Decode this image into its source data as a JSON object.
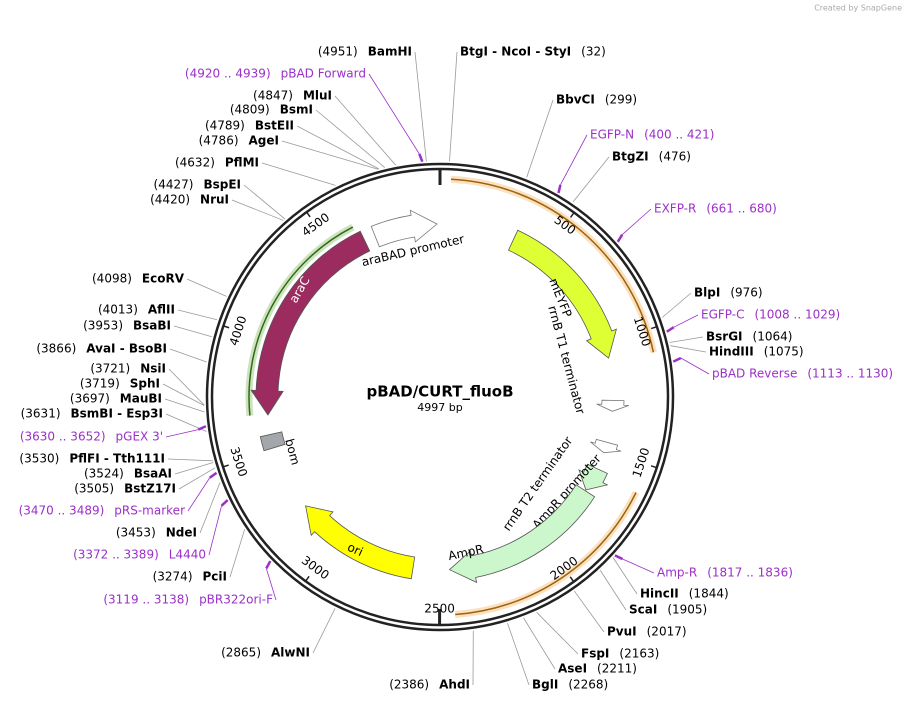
{
  "title": "pBAD/CURT_fluoB",
  "length": {
    "value": 4997,
    "label": "4997 bp"
  },
  "credit": "Created by SnapGene",
  "ticks": [
    500,
    1000,
    1500,
    2000,
    2500,
    3000,
    3500,
    4000,
    4500
  ],
  "sites": [
    {
      "name": "BamHI",
      "position": {
        "value": 4951,
        "label": "(4951)"
      }
    },
    {
      "name": "BtgI - NcoI - StyI",
      "position": {
        "value": 32,
        "label": "(32)"
      }
    },
    {
      "name": "BbvCI",
      "position": {
        "value": 299,
        "label": "(299)"
      }
    },
    {
      "name": "BtgZI",
      "position": {
        "value": 476,
        "label": "(476)"
      }
    },
    {
      "name": "BlpI",
      "position": {
        "value": 976,
        "label": "(976)"
      }
    },
    {
      "name": "BsrGI",
      "position": {
        "value": 1064,
        "label": "(1064)"
      }
    },
    {
      "name": "HindIII",
      "position": {
        "value": 1075,
        "label": "(1075)"
      }
    },
    {
      "name": "HincII",
      "position": {
        "value": 1844,
        "label": "(1844)"
      }
    },
    {
      "name": "ScaI",
      "position": {
        "value": 1905,
        "label": "(1905)"
      }
    },
    {
      "name": "PvuI",
      "position": {
        "value": 2017,
        "label": "(2017)"
      }
    },
    {
      "name": "FspI",
      "position": {
        "value": 2163,
        "label": "(2163)"
      }
    },
    {
      "name": "AseI",
      "position": {
        "value": 2211,
        "label": "(2211)"
      }
    },
    {
      "name": "BglI",
      "position": {
        "value": 2268,
        "label": "(2268)"
      }
    },
    {
      "name": "AhdI",
      "position": {
        "value": 2386,
        "label": "(2386)"
      }
    },
    {
      "name": "AlwNI",
      "position": {
        "value": 2865,
        "label": "(2865)"
      }
    },
    {
      "name": "PciI",
      "position": {
        "value": 3274,
        "label": "(3274)"
      }
    },
    {
      "name": "NdeI",
      "position": {
        "value": 3453,
        "label": "(3453)"
      }
    },
    {
      "name": "BstZ17I",
      "position": {
        "value": 3505,
        "label": "(3505)"
      }
    },
    {
      "name": "BsaAI",
      "position": {
        "value": 3524,
        "label": "(3524)"
      }
    },
    {
      "name": "PflFI - Tth111I",
      "position": {
        "value": 3530,
        "label": "(3530)"
      }
    },
    {
      "name": "BsmBI - Esp3I",
      "position": {
        "value": 3631,
        "label": "(3631)"
      }
    },
    {
      "name": "MauBI",
      "position": {
        "value": 3697,
        "label": "(3697)"
      }
    },
    {
      "name": "SphI",
      "position": {
        "value": 3719,
        "label": "(3719)"
      }
    },
    {
      "name": "NsiI",
      "position": {
        "value": 3721,
        "label": "(3721)"
      }
    },
    {
      "name": "AvaI - BsoBI",
      "position": {
        "value": 3866,
        "label": "(3866)"
      }
    },
    {
      "name": "BsaBI",
      "position": {
        "value": 3953,
        "label": "(3953)"
      }
    },
    {
      "name": "AflII",
      "position": {
        "value": 4013,
        "label": "(4013)"
      }
    },
    {
      "name": "EcoRV",
      "position": {
        "value": 4098,
        "label": "(4098)"
      }
    },
    {
      "name": "NruI",
      "position": {
        "value": 4420,
        "label": "(4420)"
      }
    },
    {
      "name": "BspEI",
      "position": {
        "value": 4427,
        "label": "(4427)"
      }
    },
    {
      "name": "PflMI",
      "position": {
        "value": 4632,
        "label": "(4632)"
      }
    },
    {
      "name": "AgeI",
      "position": {
        "value": 4786,
        "label": "(4786)"
      }
    },
    {
      "name": "BstEII",
      "position": {
        "value": 4789,
        "label": "(4789)"
      }
    },
    {
      "name": "BsmI",
      "position": {
        "value": 4809,
        "label": "(4809)"
      }
    },
    {
      "name": "MluI",
      "position": {
        "value": 4847,
        "label": "(4847)"
      }
    }
  ],
  "primers": [
    {
      "name": "pBAD Forward",
      "range": {
        "start": 4920,
        "end": 4939,
        "label": "(4920 .. 4939)"
      }
    },
    {
      "name": "EGFP-N",
      "range": {
        "start": 400,
        "end": 421,
        "label": "(400 .. 421)"
      }
    },
    {
      "name": "EXFP-R",
      "range": {
        "start": 661,
        "end": 680,
        "label": "(661 .. 680)"
      }
    },
    {
      "name": "EGFP-C",
      "range": {
        "start": 1008,
        "end": 1029,
        "label": "(1008 .. 1029)"
      }
    },
    {
      "name": "pBAD Reverse",
      "range": {
        "start": 1113,
        "end": 1130,
        "label": "(1113 .. 1130)"
      }
    },
    {
      "name": "Amp-R",
      "range": {
        "start": 1817,
        "end": 1836,
        "label": "(1817 .. 1836)"
      }
    },
    {
      "name": "pGEX 3'",
      "range": {
        "start": 3630,
        "end": 3652,
        "label": "(3630 .. 3652)"
      }
    },
    {
      "name": "pRS-marker",
      "range": {
        "start": 3470,
        "end": 3489,
        "label": "(3470 .. 3489)"
      }
    },
    {
      "name": "L4440",
      "range": {
        "start": 3372,
        "end": 3389,
        "label": "(3372 .. 3389)"
      }
    },
    {
      "name": "pBR322ori-F",
      "range": {
        "start": 3119,
        "end": 3138,
        "label": "(3119 .. 3138)"
      }
    }
  ],
  "features": [
    {
      "name": "araBAD promoter",
      "start": 4692,
      "end": 4983,
      "strand": 1,
      "color": "#ffffff"
    },
    {
      "name": "mEYFP",
      "start": 347,
      "end": 1069,
      "strand": 1,
      "color": "#ddff33"
    },
    {
      "name": "rrnB T1 terminator",
      "start": 1265,
      "end": 1315,
      "strand": 1,
      "color": "#ffffff"
    },
    {
      "name": "rrnB T2 terminator",
      "start": 1460,
      "end": 1510,
      "strand": 1,
      "color": "#ffffff"
    },
    {
      "name": "AmpR promoter",
      "start": 1590,
      "end": 1700,
      "strand": 1,
      "color": "#ccf7cc"
    },
    {
      "name": "AmpR",
      "start": 1705,
      "end": 2455,
      "strand": 1,
      "color": "#ccf7cc"
    },
    {
      "name": "ori",
      "start": 2623,
      "end": 3206,
      "strand": 1,
      "color": "#ffff00"
    },
    {
      "name": "bom",
      "start": 3512,
      "end": 3575,
      "strand": 0,
      "color": "#a3a7ab"
    },
    {
      "name": "araC",
      "start": 3665,
      "end": 4640,
      "strand": -1,
      "color": "#9c2c60"
    }
  ],
  "highlights": [
    {
      "start": 40,
      "end": 1085,
      "color": "#f0a030",
      "radius": "outer"
    },
    {
      "start": 1610,
      "end": 2443,
      "color": "#f0a030",
      "radius": "outer"
    },
    {
      "start": 3670,
      "end": 4620,
      "color": "#5aa02c",
      "radius": "inner"
    }
  ]
}
